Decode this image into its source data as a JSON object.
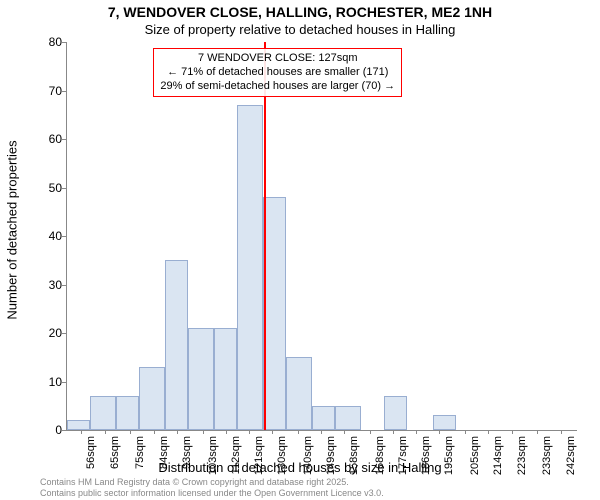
{
  "title": "7, WENDOVER CLOSE, HALLING, ROCHESTER, ME2 1NH",
  "subtitle": "Size of property relative to detached houses in Halling",
  "y_axis_label": "Number of detached properties",
  "x_axis_label": "Distribution of detached houses by size in Halling",
  "footer_line1": "Contains HM Land Registry data © Crown copyright and database right 2025.",
  "footer_line2": "Contains public sector information licensed under the Open Government Licence v3.0.",
  "chart": {
    "type": "histogram",
    "ylim": [
      0,
      80
    ],
    "ytick_step": 10,
    "x_tick_labels": [
      "56sqm",
      "65sqm",
      "75sqm",
      "84sqm",
      "93sqm",
      "103sqm",
      "112sqm",
      "121sqm",
      "130sqm",
      "140sqm",
      "149sqm",
      "158sqm",
      "168sqm",
      "177sqm",
      "186sqm",
      "195sqm",
      "205sqm",
      "214sqm",
      "223sqm",
      "233sqm",
      "242sqm"
    ],
    "x_tick_values": [
      56,
      65,
      75,
      84,
      93,
      103,
      112,
      121,
      130,
      140,
      149,
      158,
      168,
      177,
      186,
      195,
      205,
      214,
      223,
      233,
      242
    ],
    "x_range": [
      50,
      248
    ],
    "bars": [
      {
        "x0": 50,
        "x1": 59,
        "y": 2
      },
      {
        "x0": 59,
        "x1": 69,
        "y": 7
      },
      {
        "x0": 69,
        "x1": 78,
        "y": 7
      },
      {
        "x0": 78,
        "x1": 88,
        "y": 13
      },
      {
        "x0": 88,
        "x1": 97,
        "y": 35
      },
      {
        "x0": 97,
        "x1": 107,
        "y": 21
      },
      {
        "x0": 107,
        "x1": 116,
        "y": 21
      },
      {
        "x0": 116,
        "x1": 126,
        "y": 67
      },
      {
        "x0": 126,
        "x1": 135,
        "y": 48
      },
      {
        "x0": 135,
        "x1": 145,
        "y": 15
      },
      {
        "x0": 145,
        "x1": 154,
        "y": 5
      },
      {
        "x0": 154,
        "x1": 164,
        "y": 5
      },
      {
        "x0": 164,
        "x1": 173,
        "y": 0
      },
      {
        "x0": 173,
        "x1": 182,
        "y": 7
      },
      {
        "x0": 182,
        "x1": 192,
        "y": 0
      },
      {
        "x0": 192,
        "x1": 201,
        "y": 3
      },
      {
        "x0": 201,
        "x1": 211,
        "y": 0
      },
      {
        "x0": 211,
        "x1": 220,
        "y": 0
      },
      {
        "x0": 220,
        "x1": 229,
        "y": 0
      },
      {
        "x0": 229,
        "x1": 239,
        "y": 0
      },
      {
        "x0": 239,
        "x1": 248,
        "y": 0
      }
    ],
    "bar_fill_color": "#dae5f2",
    "bar_border_color": "#99aed1",
    "reference_line": {
      "x": 127,
      "color": "#ff0000"
    },
    "callout": {
      "line1": "7 WENDOVER CLOSE: 127sqm",
      "line2": "← 71% of detached houses are smaller (171)",
      "line3": "29% of semi-detached houses are larger (70) →",
      "border_color": "#ff0000"
    },
    "background_color": "#ffffff",
    "axis_color": "#888888",
    "tick_fontsize": 11,
    "label_fontsize": 13,
    "title_fontsize": 14
  }
}
